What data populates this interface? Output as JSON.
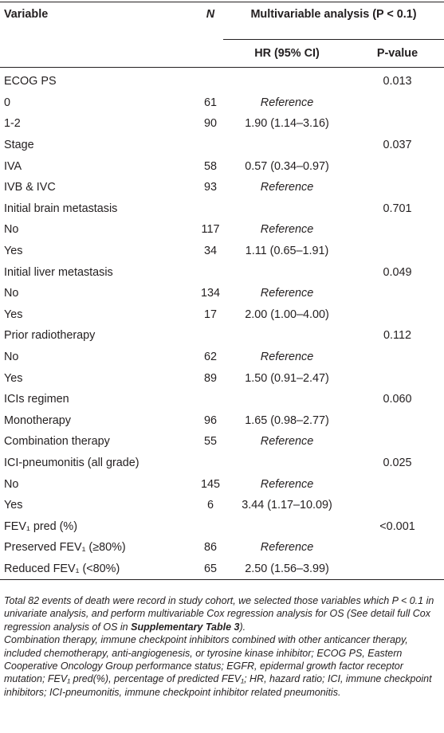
{
  "table": {
    "headers": {
      "variable": "Variable",
      "n": "N",
      "multi": "Multivariable analysis (P < 0.1)",
      "hr": "HR (95% CI)",
      "pvalue": "P-value"
    },
    "rows": [
      {
        "variable": "ECOG PS",
        "n": "",
        "hr": "",
        "p": "0.013"
      },
      {
        "variable": "0",
        "n": "61",
        "hr": "Reference",
        "p": ""
      },
      {
        "variable": "1-2",
        "n": "90",
        "hr": "1.90 (1.14–3.16)",
        "p": ""
      },
      {
        "variable": "Stage",
        "n": "",
        "hr": "",
        "p": "0.037"
      },
      {
        "variable": "IVA",
        "n": "58",
        "hr": "0.57 (0.34–0.97)",
        "p": ""
      },
      {
        "variable": "IVB & IVC",
        "n": "93",
        "hr": "Reference",
        "p": ""
      },
      {
        "variable": "Initial brain metastasis",
        "n": "",
        "hr": "",
        "p": "0.701"
      },
      {
        "variable": "No",
        "n": "117",
        "hr": "Reference",
        "p": ""
      },
      {
        "variable": "Yes",
        "n": "34",
        "hr": "1.11 (0.65–1.91)",
        "p": ""
      },
      {
        "variable": "Initial liver metastasis",
        "n": "",
        "hr": "",
        "p": "0.049"
      },
      {
        "variable": "No",
        "n": "134",
        "hr": "Reference",
        "p": ""
      },
      {
        "variable": "Yes",
        "n": "17",
        "hr": "2.00 (1.00–4.00)",
        "p": ""
      },
      {
        "variable": "Prior radiotherapy",
        "n": "",
        "hr": "",
        "p": "0.112"
      },
      {
        "variable": "No",
        "n": "62",
        "hr": "Reference",
        "p": ""
      },
      {
        "variable": "Yes",
        "n": "89",
        "hr": "1.50 (0.91–2.47)",
        "p": ""
      },
      {
        "variable": "ICIs regimen",
        "n": "",
        "hr": "",
        "p": "0.060"
      },
      {
        "variable": "Monotherapy",
        "n": "96",
        "hr": "1.65 (0.98–2.77)",
        "p": ""
      },
      {
        "variable": "Combination therapy",
        "n": "55",
        "hr": "Reference",
        "p": ""
      },
      {
        "variable": "ICI-pneumonitis (all grade)",
        "n": "",
        "hr": "",
        "p": "0.025"
      },
      {
        "variable": "No",
        "n": "145",
        "hr": "Reference",
        "p": ""
      },
      {
        "variable": "Yes",
        "n": "6",
        "hr": "3.44 (1.17–10.09)",
        "p": ""
      },
      {
        "variable": "FEV₁ pred (%)",
        "n": "",
        "hr": "",
        "p": "<0.001"
      },
      {
        "variable": "Preserved FEV₁ (≥80%)",
        "n": "86",
        "hr": "Reference",
        "p": ""
      },
      {
        "variable": "Reduced FEV₁ (<80%)",
        "n": "65",
        "hr": "2.50 (1.56–3.99)",
        "p": ""
      }
    ]
  },
  "footnotes": {
    "note1_a": "Total 82 events of death were record in study cohort, we selected those variables which P < 0.1 in univariate analysis, and perform multivariable Cox regression analysis for OS (See detail full Cox regression analysis of OS in ",
    "note1_bold": "Supplementary Table 3",
    "note1_b": ").",
    "note2": "Combination therapy, immune checkpoint inhibitors combined with other anticancer therapy, included chemotherapy, anti-angiogenesis, or tyrosine kinase inhibitor; ECOG PS, Eastern Cooperative Oncology Group performance status; EGFR, epidermal growth factor receptor mutation; FEV₁ pred(%), percentage of predicted FEV₁; HR, hazard ratio; ICI, immune checkpoint inhibitors; ICI-pneumonitis, immune checkpoint inhibitor related pneumonitis."
  }
}
